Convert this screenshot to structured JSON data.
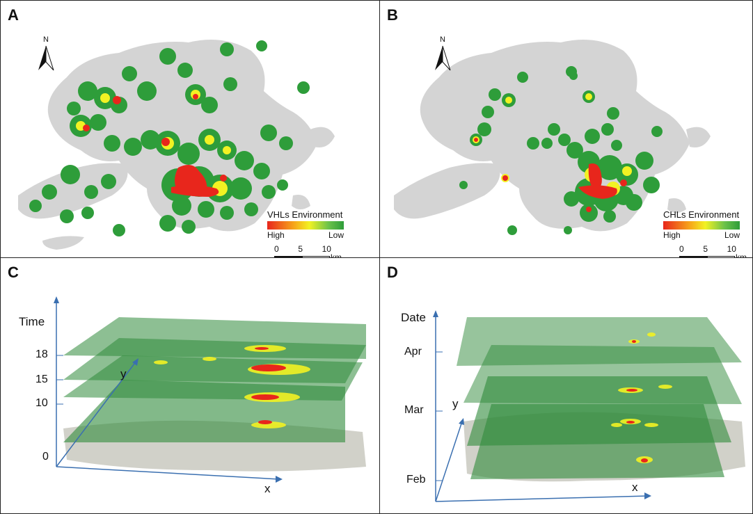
{
  "panels": {
    "a": {
      "letter": "A",
      "north": "N",
      "legend": {
        "title": "VHLs Environment",
        "high": "High",
        "low": "Low"
      },
      "scale": {
        "labels": [
          "0",
          "5",
          "10"
        ],
        "unit": "km"
      }
    },
    "b": {
      "letter": "B",
      "north": "N",
      "legend": {
        "title": "CHLs Environment",
        "high": "High",
        "low": "Low"
      },
      "scale": {
        "labels": [
          "0",
          "5",
          "10"
        ],
        "unit": "km"
      }
    },
    "c": {
      "letter": "C",
      "vertical_axis": "Time",
      "ticks": [
        "18",
        "15",
        "10",
        "0"
      ],
      "x_axis": "x",
      "y_axis": "y"
    },
    "d": {
      "letter": "D",
      "vertical_axis": "Date",
      "ticks": [
        "Apr",
        "Mar",
        "Feb"
      ],
      "x_axis": "x",
      "y_axis": "y"
    }
  },
  "colors": {
    "land": "#d4d4d4",
    "high": "#e8261c",
    "mid": "#f2f223",
    "low": "#2e9d3a",
    "layer": "#2f8a3a",
    "axis": "#3a6fb0"
  }
}
